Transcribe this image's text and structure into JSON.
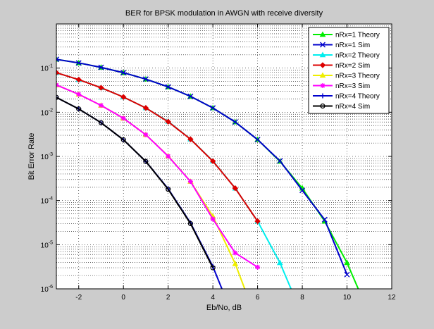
{
  "chart_data": {
    "type": "line",
    "title": "BER for BPSK modulation in AWGN with receive diversity",
    "xlabel": "Eb/No, dB",
    "ylabel": "Bit Error Rate",
    "xlim": [
      -3,
      12
    ],
    "ylim": [
      1e-06,
      1
    ],
    "yscale": "log",
    "grid": true,
    "legend_position": "top-right",
    "x_ticks": [
      {
        "value": -2,
        "label": "-2"
      },
      {
        "value": 0,
        "label": "0"
      },
      {
        "value": 2,
        "label": "2"
      },
      {
        "value": 4,
        "label": "4"
      },
      {
        "value": 6,
        "label": "6"
      },
      {
        "value": 8,
        "label": "8"
      },
      {
        "value": 10,
        "label": "10"
      },
      {
        "value": 12,
        "label": "12"
      }
    ],
    "y_ticks": [
      {
        "value": 1e-06,
        "base": "10",
        "exp": "-6"
      },
      {
        "value": 1e-05,
        "base": "10",
        "exp": "-5"
      },
      {
        "value": 0.0001,
        "base": "10",
        "exp": "-4"
      },
      {
        "value": 0.001,
        "base": "10",
        "exp": "-3"
      },
      {
        "value": 0.01,
        "base": "10",
        "exp": "-2"
      },
      {
        "value": 0.1,
        "base": "10",
        "exp": "-1"
      }
    ],
    "series": [
      {
        "name": "nRx=1 Theory",
        "color": "#00ee00",
        "marker": "triangle",
        "x": [
          -3,
          -2,
          -1,
          0,
          1,
          2,
          3,
          4,
          5,
          6,
          7,
          8,
          9,
          10,
          11
        ],
        "y": [
          0.158,
          0.131,
          0.104,
          0.0786,
          0.0563,
          0.0375,
          0.0229,
          0.0125,
          0.006,
          0.0024,
          0.00077,
          0.00019,
          3.4e-05,
          3.9e-06,
          2.6e-07
        ]
      },
      {
        "name": "nRx=1 Sim",
        "color": "#0000cc",
        "marker": "x",
        "x": [
          -3,
          -2,
          -1,
          0,
          1,
          2,
          3,
          4,
          5,
          6,
          7,
          8,
          9,
          10
        ],
        "y": [
          0.158,
          0.131,
          0.104,
          0.0786,
          0.0563,
          0.0375,
          0.0229,
          0.0125,
          0.006,
          0.0024,
          0.00079,
          0.00017,
          3.7e-05,
          2.1e-06
        ]
      },
      {
        "name": "nRx=2 Theory",
        "color": "#00eeee",
        "marker": "triangle",
        "x": [
          -3,
          -2,
          -1,
          0,
          1,
          2,
          3,
          4,
          5,
          6,
          7,
          8
        ],
        "y": [
          0.0787,
          0.0547,
          0.0359,
          0.0221,
          0.0125,
          0.0062,
          0.00246,
          0.00079,
          0.00019,
          3.4e-05,
          3.9e-06,
          2.5e-07
        ]
      },
      {
        "name": "nRx=2 Sim",
        "color": "#dd0000",
        "marker": "diamond",
        "x": [
          -3,
          -2,
          -1,
          0,
          1,
          2,
          3,
          4,
          5,
          6
        ],
        "y": [
          0.0787,
          0.0547,
          0.0359,
          0.0221,
          0.0125,
          0.0061,
          0.00245,
          0.00078,
          0.00019,
          3.4e-05
        ]
      },
      {
        "name": "nRx=3 Theory",
        "color": "#eeee00",
        "marker": "triangle",
        "x": [
          -3,
          -2,
          -1,
          0,
          1,
          2,
          3,
          4,
          5,
          6
        ],
        "y": [
          0.0415,
          0.0255,
          0.0143,
          0.0073,
          0.0031,
          0.00102,
          0.00027,
          4.4e-05,
          3.7e-06,
          1.7e-07
        ]
      },
      {
        "name": "nRx=3 Sim",
        "color": "#ff00ff",
        "marker": "star",
        "x": [
          -3,
          -2,
          -1,
          0,
          1,
          2,
          3,
          4,
          5,
          6
        ],
        "y": [
          0.0415,
          0.0255,
          0.0143,
          0.0073,
          0.0031,
          0.00101,
          0.00027,
          3.8e-05,
          6.5e-06,
          3.1e-06
        ]
      },
      {
        "name": "nRx=4 Theory",
        "color": "#0000cc",
        "marker": "plus",
        "x": [
          -3,
          -2,
          -1,
          0,
          1,
          2,
          3,
          4,
          5
        ],
        "y": [
          0.0217,
          0.0119,
          0.0058,
          0.00238,
          0.00077,
          0.000185,
          3.1e-05,
          3.2e-06,
          1.8e-07
        ]
      },
      {
        "name": "nRx=4 Sim",
        "color": "#000000",
        "marker": "circle",
        "x": [
          -3,
          -2,
          -1,
          0,
          1,
          2,
          3,
          4
        ],
        "y": [
          0.0217,
          0.0119,
          0.0058,
          0.00238,
          0.00077,
          0.00018,
          3e-05,
          3e-06
        ]
      }
    ]
  }
}
